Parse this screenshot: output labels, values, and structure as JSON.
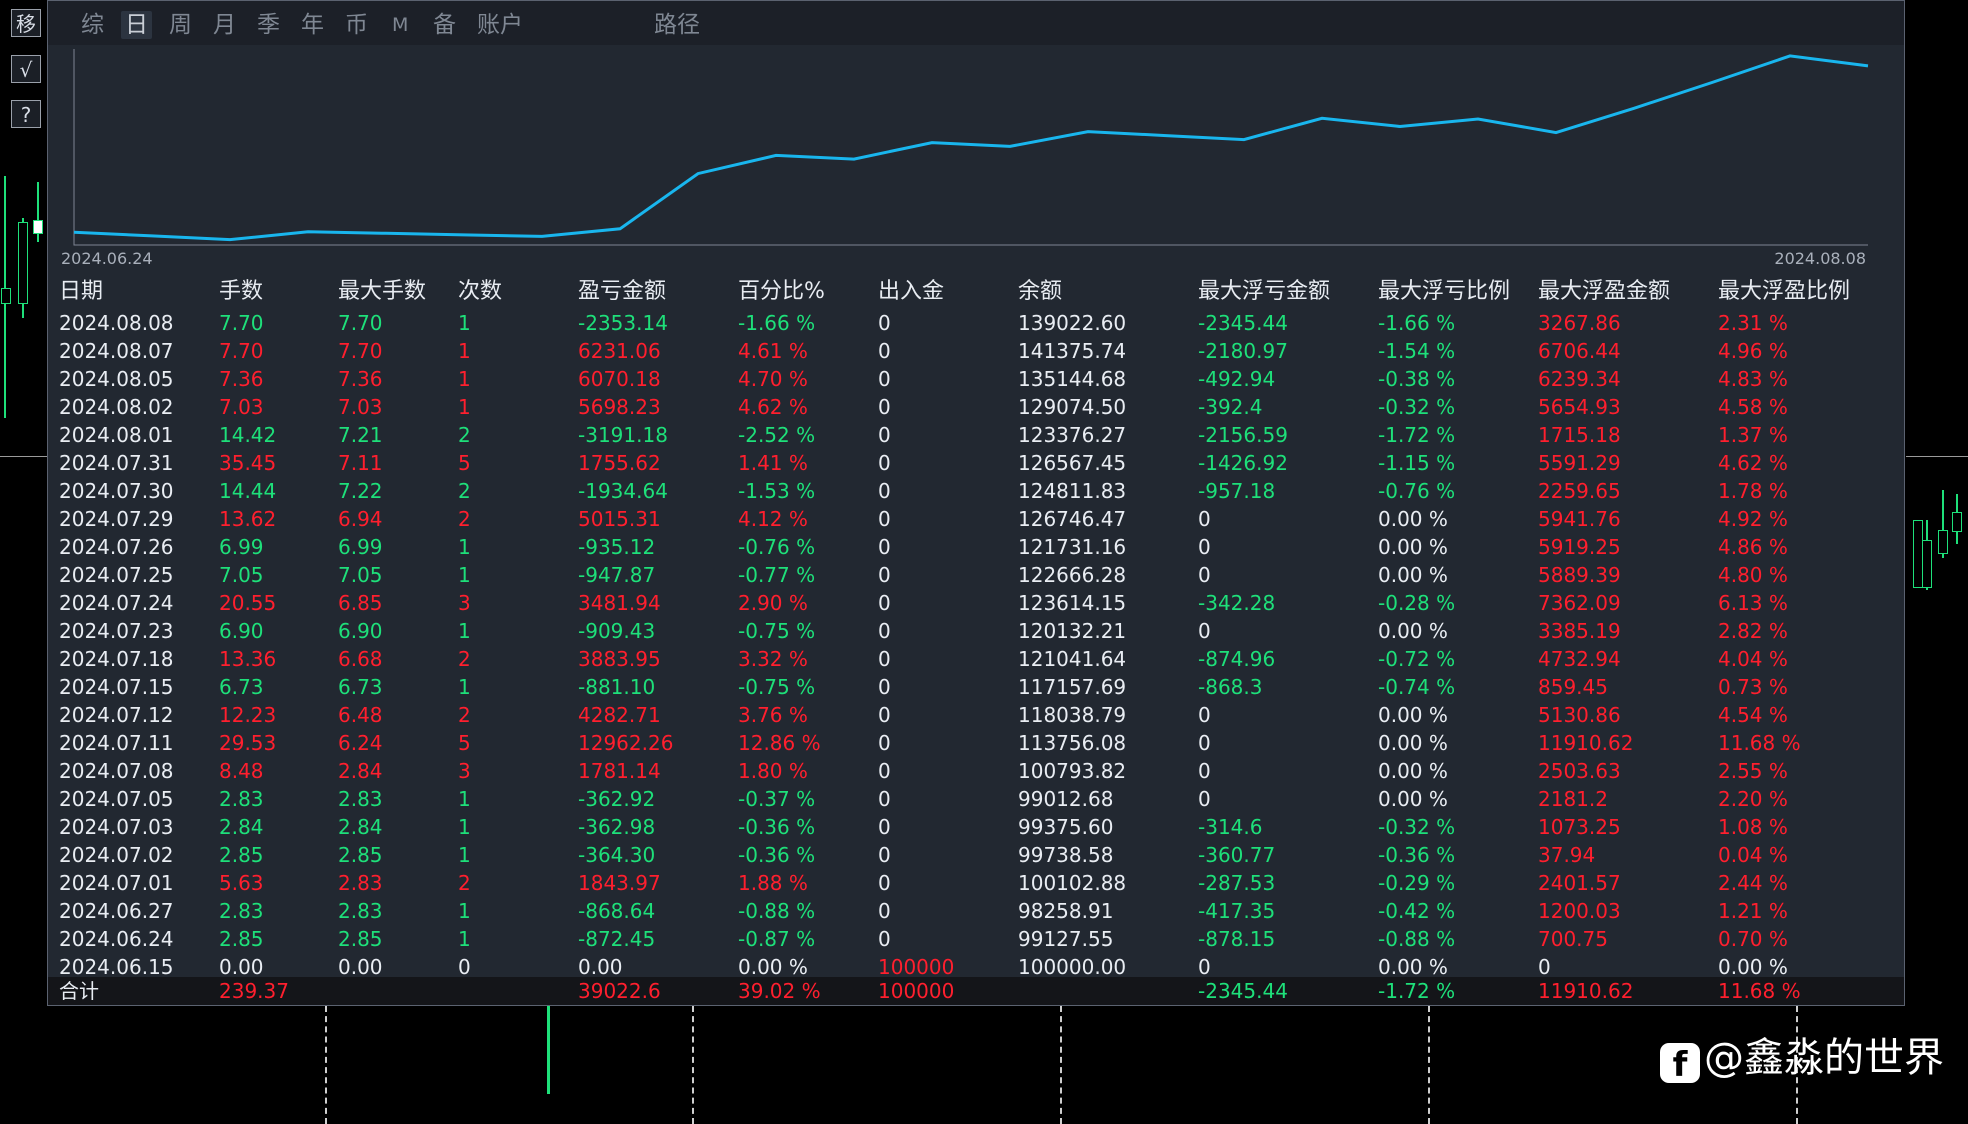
{
  "side_buttons": [
    "移",
    "√",
    "?"
  ],
  "tabs": [
    {
      "label": "综",
      "active": false
    },
    {
      "label": "日",
      "active": true
    },
    {
      "label": "周",
      "active": false
    },
    {
      "label": "月",
      "active": false
    },
    {
      "label": "季",
      "active": false
    },
    {
      "label": "年",
      "active": false
    },
    {
      "label": "币",
      "active": false
    },
    {
      "label": "M",
      "active": false
    },
    {
      "label": "备",
      "active": false
    },
    {
      "label": "账户",
      "active": false
    },
    {
      "label": "路径",
      "active": false
    }
  ],
  "chart_data": {
    "type": "line",
    "x_start_label": "2024.06.24",
    "x_end_label": "2024.08.08",
    "series": [
      {
        "values": [
          100000,
          99127.55,
          98258.91,
          100102.88,
          99738.58,
          99375.6,
          99012.68,
          100793.82,
          113756.08,
          118038.79,
          117157.69,
          121041.64,
          120132.21,
          123614.15,
          122666.28,
          121731.16,
          126746.47,
          124811.83,
          126567.45,
          123376.27,
          129074.5,
          135144.68,
          141375.74,
          139022.6
        ]
      }
    ],
    "color": "#19b6ee",
    "ylim": [
      97000,
      143000
    ]
  },
  "table": {
    "headers": [
      "日期",
      "手数",
      "最大手数",
      "次数",
      "盈亏金额",
      "百分比%",
      "出入金",
      "余额",
      "最大浮亏金额",
      "最大浮亏比例",
      "最大浮盈金额",
      "最大浮盈比例"
    ],
    "rows": [
      [
        "2024.08.08",
        "7.70",
        "7.70",
        "1",
        "-2353.14",
        "-1.66 %",
        "0",
        "139022.60",
        "-2345.44",
        "-1.66 %",
        "3267.86",
        "2.31 %"
      ],
      [
        "2024.08.07",
        "7.70",
        "7.70",
        "1",
        "6231.06",
        "4.61 %",
        "0",
        "141375.74",
        "-2180.97",
        "-1.54 %",
        "6706.44",
        "4.96 %"
      ],
      [
        "2024.08.05",
        "7.36",
        "7.36",
        "1",
        "6070.18",
        "4.70 %",
        "0",
        "135144.68",
        "-492.94",
        "-0.38 %",
        "6239.34",
        "4.83 %"
      ],
      [
        "2024.08.02",
        "7.03",
        "7.03",
        "1",
        "5698.23",
        "4.62 %",
        "0",
        "129074.50",
        "-392.4",
        "-0.32 %",
        "5654.93",
        "4.58 %"
      ],
      [
        "2024.08.01",
        "14.42",
        "7.21",
        "2",
        "-3191.18",
        "-2.52 %",
        "0",
        "123376.27",
        "-2156.59",
        "-1.72 %",
        "1715.18",
        "1.37 %"
      ],
      [
        "2024.07.31",
        "35.45",
        "7.11",
        "5",
        "1755.62",
        "1.41 %",
        "0",
        "126567.45",
        "-1426.92",
        "-1.15 %",
        "5591.29",
        "4.62 %"
      ],
      [
        "2024.07.30",
        "14.44",
        "7.22",
        "2",
        "-1934.64",
        "-1.53 %",
        "0",
        "124811.83",
        "-957.18",
        "-0.76 %",
        "2259.65",
        "1.78 %"
      ],
      [
        "2024.07.29",
        "13.62",
        "6.94",
        "2",
        "5015.31",
        "4.12 %",
        "0",
        "126746.47",
        "0",
        "0.00 %",
        "5941.76",
        "4.92 %"
      ],
      [
        "2024.07.26",
        "6.99",
        "6.99",
        "1",
        "-935.12",
        "-0.76 %",
        "0",
        "121731.16",
        "0",
        "0.00 %",
        "5919.25",
        "4.86 %"
      ],
      [
        "2024.07.25",
        "7.05",
        "7.05",
        "1",
        "-947.87",
        "-0.77 %",
        "0",
        "122666.28",
        "0",
        "0.00 %",
        "5889.39",
        "4.80 %"
      ],
      [
        "2024.07.24",
        "20.55",
        "6.85",
        "3",
        "3481.94",
        "2.90 %",
        "0",
        "123614.15",
        "-342.28",
        "-0.28 %",
        "7362.09",
        "6.13 %"
      ],
      [
        "2024.07.23",
        "6.90",
        "6.90",
        "1",
        "-909.43",
        "-0.75 %",
        "0",
        "120132.21",
        "0",
        "0.00 %",
        "3385.19",
        "2.82 %"
      ],
      [
        "2024.07.18",
        "13.36",
        "6.68",
        "2",
        "3883.95",
        "3.32 %",
        "0",
        "121041.64",
        "-874.96",
        "-0.72 %",
        "4732.94",
        "4.04 %"
      ],
      [
        "2024.07.15",
        "6.73",
        "6.73",
        "1",
        "-881.10",
        "-0.75 %",
        "0",
        "117157.69",
        "-868.3",
        "-0.74 %",
        "859.45",
        "0.73 %"
      ],
      [
        "2024.07.12",
        "12.23",
        "6.48",
        "2",
        "4282.71",
        "3.76 %",
        "0",
        "118038.79",
        "0",
        "0.00 %",
        "5130.86",
        "4.54 %"
      ],
      [
        "2024.07.11",
        "29.53",
        "6.24",
        "5",
        "12962.26",
        "12.86 %",
        "0",
        "113756.08",
        "0",
        "0.00 %",
        "11910.62",
        "11.68 %"
      ],
      [
        "2024.07.08",
        "8.48",
        "2.84",
        "3",
        "1781.14",
        "1.80 %",
        "0",
        "100793.82",
        "0",
        "0.00 %",
        "2503.63",
        "2.55 %"
      ],
      [
        "2024.07.05",
        "2.83",
        "2.83",
        "1",
        "-362.92",
        "-0.37 %",
        "0",
        "99012.68",
        "0",
        "0.00 %",
        "2181.2",
        "2.20 %"
      ],
      [
        "2024.07.03",
        "2.84",
        "2.84",
        "1",
        "-362.98",
        "-0.36 %",
        "0",
        "99375.60",
        "-314.6",
        "-0.32 %",
        "1073.25",
        "1.08 %"
      ],
      [
        "2024.07.02",
        "2.85",
        "2.85",
        "1",
        "-364.30",
        "-0.36 %",
        "0",
        "99738.58",
        "-360.77",
        "-0.36 %",
        "37.94",
        "0.04 %"
      ],
      [
        "2024.07.01",
        "5.63",
        "2.83",
        "2",
        "1843.97",
        "1.88 %",
        "0",
        "100102.88",
        "-287.53",
        "-0.29 %",
        "2401.57",
        "2.44 %"
      ],
      [
        "2024.06.27",
        "2.83",
        "2.83",
        "1",
        "-868.64",
        "-0.88 %",
        "0",
        "98258.91",
        "-417.35",
        "-0.42 %",
        "1200.03",
        "1.21 %"
      ],
      [
        "2024.06.24",
        "2.85",
        "2.85",
        "1",
        "-872.45",
        "-0.87 %",
        "0",
        "99127.55",
        "-878.15",
        "-0.88 %",
        "700.75",
        "0.70 %"
      ],
      [
        "2024.06.15",
        "0.00",
        "0.00",
        "0",
        "0.00",
        "0.00 %",
        "100000",
        "100000.00",
        "0",
        "0.00 %",
        "0",
        "0.00 %"
      ]
    ],
    "total": [
      "合计",
      "239.37",
      "",
      "",
      "39022.6",
      "39.02 %",
      "100000",
      "",
      "-2345.44",
      "-1.72 %",
      "11910.62",
      "11.68 %"
    ]
  },
  "watermark": {
    "icon": "facebook-icon",
    "text": "@鑫淼的世界"
  },
  "colors": {
    "profit": "#ff1f2e",
    "loss": "#1ee07a",
    "neutral": "#e9edf3",
    "line": "#19b6ee"
  }
}
